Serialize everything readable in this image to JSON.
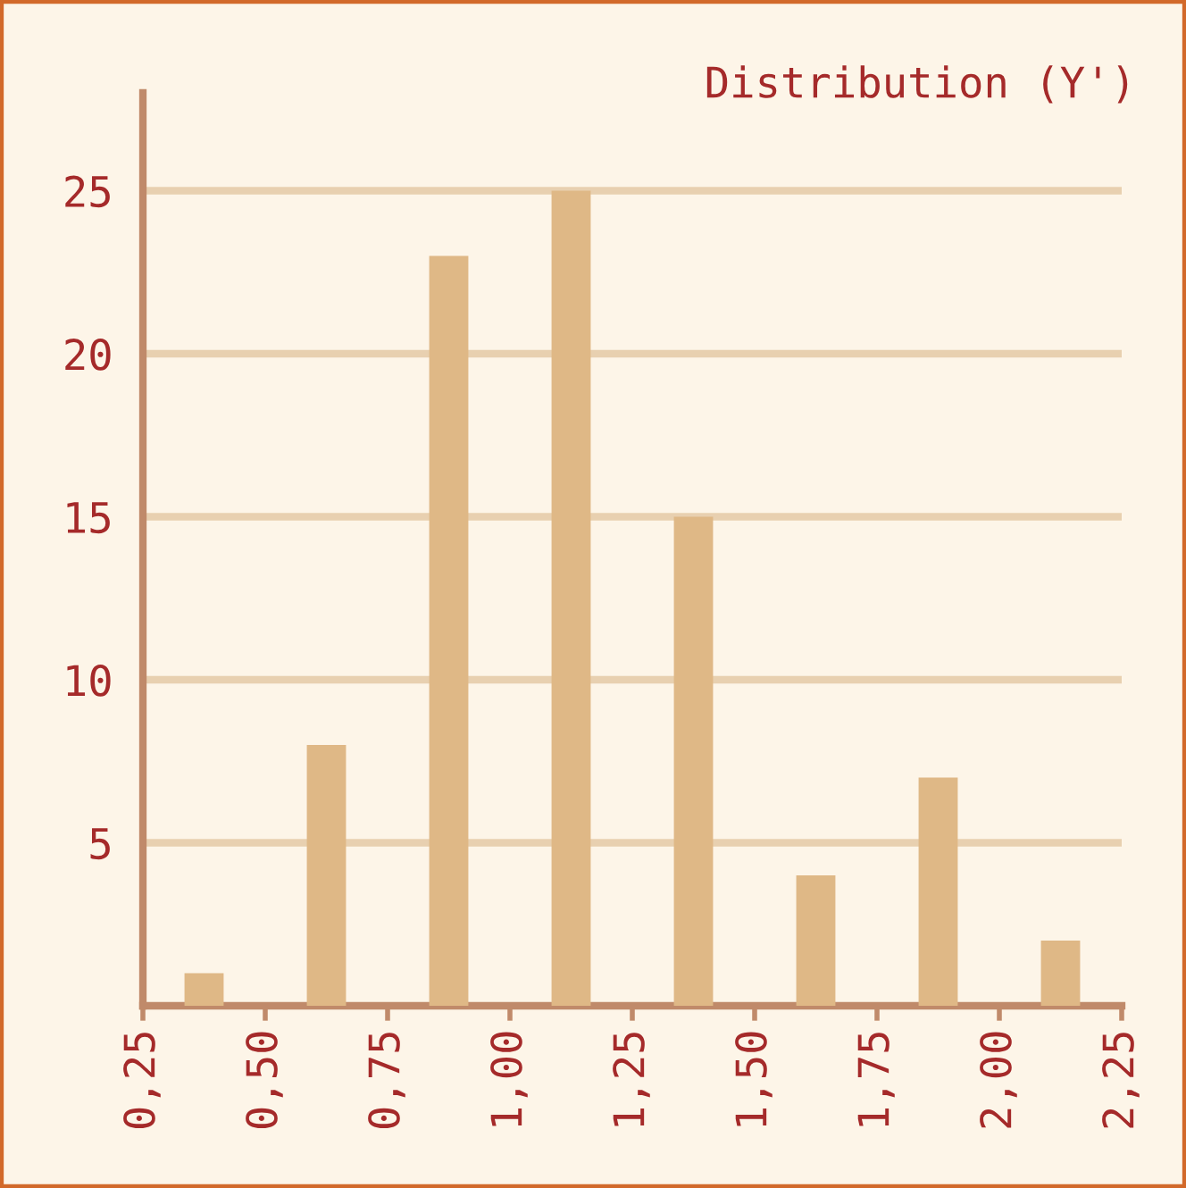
{
  "chart_data": {
    "type": "bar",
    "title": "Distribution (Y')",
    "x": [
      0.375,
      0.625,
      0.875,
      1.125,
      1.375,
      1.625,
      1.875,
      2.125
    ],
    "values": [
      1,
      8,
      23,
      25,
      15,
      4,
      7,
      2
    ],
    "color": "#dfb886",
    "xlim": [
      0.25,
      2.25
    ],
    "xticks": [
      {
        "value": 0.25,
        "label": "0,25"
      },
      {
        "value": 0.5,
        "label": "0,50"
      },
      {
        "value": 0.75,
        "label": "0,75"
      },
      {
        "value": 1.0,
        "label": "1,00"
      },
      {
        "value": 1.25,
        "label": "1,25"
      },
      {
        "value": 1.5,
        "label": "1,50"
      },
      {
        "value": 1.75,
        "label": "1,75"
      },
      {
        "value": 2.0,
        "label": "2,00"
      },
      {
        "value": 2.25,
        "label": "2,25"
      }
    ],
    "ylim": [
      0,
      28
    ],
    "yticks": [
      5,
      10,
      15,
      20,
      25
    ],
    "grid": "y",
    "legend": false
  }
}
